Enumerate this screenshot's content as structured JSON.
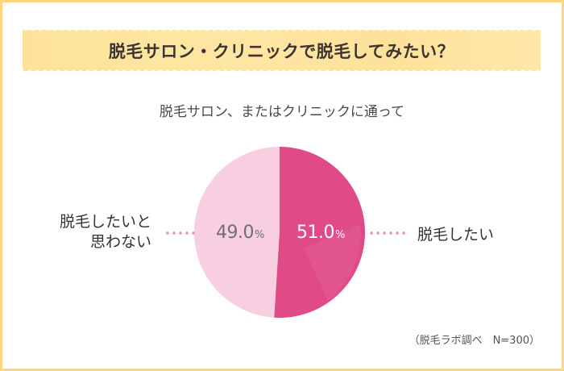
{
  "banner": {
    "title": "脱毛サロン・クリニックで脱毛してみたい？",
    "color": "#fde39a"
  },
  "subtitle": "脱毛サロン、またはクリニックに通って",
  "source_note": "（脱毛ラボ調べ　N=300）",
  "slices": [
    {
      "label": "脱毛したい",
      "value_text": "51.0",
      "unit": "%",
      "color": "#e04a87"
    },
    {
      "label_line1": "脱毛したいと",
      "label_line2": "思わない",
      "value_text": "49.0",
      "unit": "%",
      "color": "#f8cfe0"
    }
  ],
  "colors": {
    "frame": "#ffd47e",
    "slice_want": "#e04a87",
    "slice_not_want": "#f8cfe0",
    "leader_dots": "#f08cb3"
  },
  "chart_data": {
    "type": "pie",
    "title": "脱毛サロン・クリニックで脱毛してみたい？",
    "subtitle": "脱毛サロン、またはクリニックに通って",
    "categories": [
      "脱毛したい",
      "脱毛したいと思わない"
    ],
    "values": [
      51.0,
      49.0
    ],
    "unit": "%",
    "colors": [
      "#e04a87",
      "#f8cfe0"
    ],
    "start_angle": "12 o'clock, clockwise",
    "legend": "leader-line labels left and right",
    "annotation": "（脱毛ラボ調べ　N=300）",
    "sample_size": 300
  }
}
